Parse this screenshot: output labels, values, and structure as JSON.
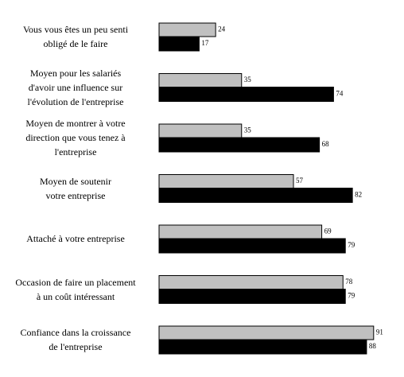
{
  "chart_data": {
    "type": "hbar",
    "categories": [
      "Vous vous êtes un peu senti\nobligé de le faire",
      "Moyen pour les salariés\nd'avoir une influence sur\nl'évolution de l'entreprise",
      "Moyen de montrer à votre\ndirection que vous tenez à\nl'entreprise",
      "Moyen de soutenir\nvotre entreprise",
      "Attaché à votre entreprise",
      "Occasion de faire un placement\nà un coût intéressant",
      "Confiance dans la croissance\nde l'entreprise"
    ],
    "series": [
      {
        "color": "#c0c0c0",
        "values": [
          24,
          35,
          35,
          57,
          69,
          78,
          91
        ]
      },
      {
        "color": "#000000",
        "values": [
          17,
          74,
          68,
          82,
          79,
          79,
          88
        ]
      }
    ]
  }
}
